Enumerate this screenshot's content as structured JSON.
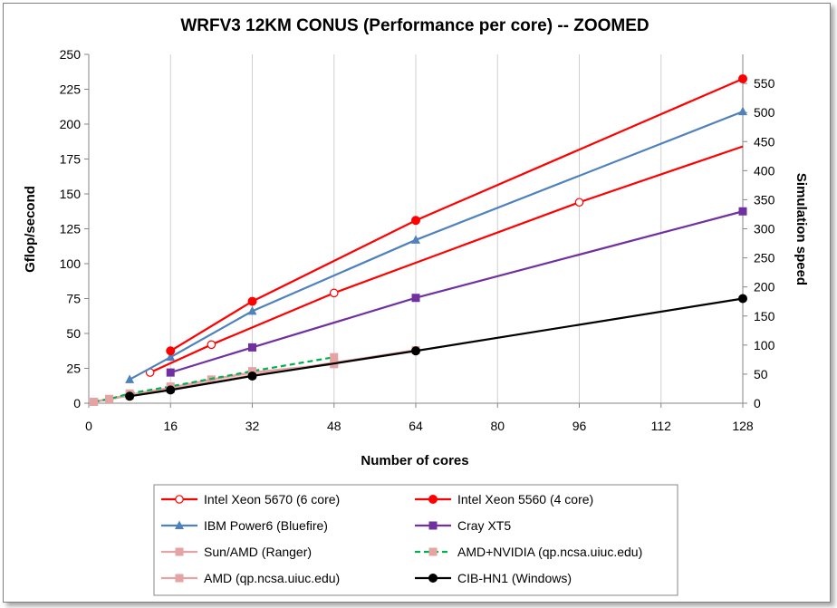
{
  "chart_data": {
    "type": "line",
    "title": "WRFV3 12KM CONUS (Performance per core) -- ZOOMED",
    "xlabel": "Number of cores",
    "ylabel": "Gflop/second",
    "y2label": "Simulation speed",
    "xlim": [
      0,
      128
    ],
    "ylim": [
      0,
      250
    ],
    "y2lim": [
      0,
      600
    ],
    "x_ticks": [
      0,
      16,
      32,
      48,
      64,
      80,
      96,
      112,
      128
    ],
    "y_ticks": [
      0,
      25,
      50,
      75,
      100,
      125,
      150,
      175,
      200,
      225,
      250
    ],
    "y2_ticks": [
      0,
      50,
      100,
      150,
      200,
      250,
      300,
      350,
      400,
      450,
      500,
      550
    ],
    "grid": "vertical",
    "legend_position": "bottom",
    "series": [
      {
        "name": "Intel Xeon 5670 (6 core)",
        "color": "#ff0000",
        "marker": "open-circle",
        "dash": false,
        "x": [
          12,
          24,
          48,
          96
        ],
        "y": [
          22,
          42,
          79,
          144
        ],
        "trend_to": [
          128,
          184
        ]
      },
      {
        "name": "Intel Xeon 5560 (4 core)",
        "color": "#ff0000",
        "marker": "filled-circle",
        "dash": false,
        "x": [
          16,
          32,
          64,
          128
        ],
        "y": [
          37.5,
          73,
          131,
          232.5
        ]
      },
      {
        "name": "IBM Power6 (Bluefire)",
        "color": "#4f81bd",
        "marker": "triangle",
        "dash": false,
        "x": [
          8,
          16,
          32,
          64,
          128
        ],
        "y": [
          17,
          33,
          66,
          117,
          209
        ]
      },
      {
        "name": "Cray XT5",
        "color": "#7030a0",
        "marker": "square",
        "dash": false,
        "x": [
          16,
          32,
          64,
          128
        ],
        "y": [
          22,
          40,
          75.5,
          137.5
        ]
      },
      {
        "name": "Sun/AMD (Ranger)",
        "color": "#e6a3a3",
        "marker": "square",
        "dash": false,
        "x": [
          1,
          4,
          8,
          16,
          24,
          32,
          48
        ],
        "y": [
          1,
          3,
          6,
          11,
          17,
          22,
          28
        ]
      },
      {
        "name": "AMD+NVIDIA (qp.ncsa.uiuc.edu)",
        "color": "#00b050",
        "marker": "square-pink",
        "dash": true,
        "x": [
          1,
          4,
          8,
          16,
          32,
          48
        ],
        "y": [
          1,
          3,
          7,
          12,
          23,
          33
        ]
      },
      {
        "name": "AMD (qp.ncsa.uiuc.edu)",
        "color": "#e6a3a3",
        "marker": "square",
        "dash": false,
        "x": [
          1,
          4,
          8,
          16,
          32,
          48,
          64
        ],
        "y": [
          1,
          3,
          5.5,
          10,
          20,
          29,
          38
        ]
      },
      {
        "name": "CIB-HN1 (Windows)",
        "color": "#000000",
        "marker": "filled-circle",
        "dash": false,
        "x": [
          8,
          16,
          32,
          64,
          128
        ],
        "y": [
          5,
          9.5,
          19.5,
          37.5,
          75
        ]
      }
    ]
  }
}
